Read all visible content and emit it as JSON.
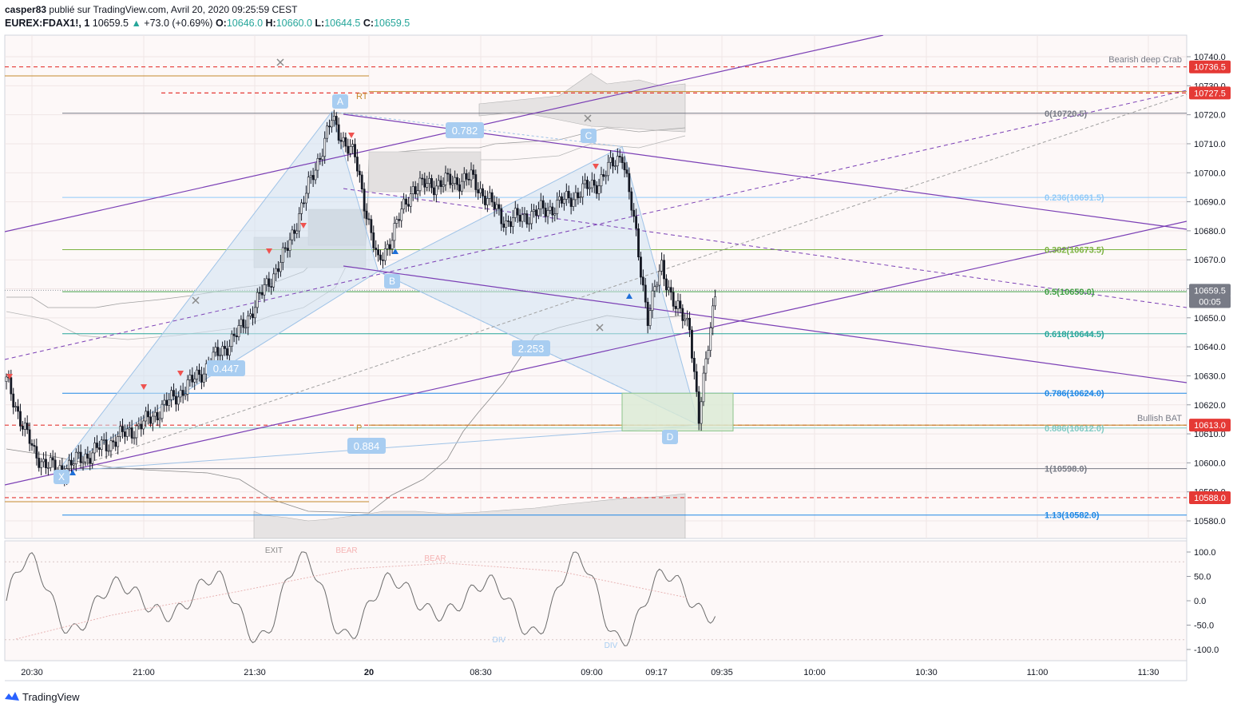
{
  "header": {
    "line1_user": "casper83",
    "line1_rest": "publié sur TradingView.com, Avril 20, 2020 09:25:59 CEST",
    "symbol": "EUREX:FDAX1!, 1",
    "last": "10659.5",
    "change_arrow": "▲",
    "change": "+73.0 (+0.69%)",
    "open_label": "O:",
    "open": "10646.0",
    "high_label": "H:",
    "high": "10660.0",
    "low_label": "L:",
    "low": "10644.5",
    "close_label": "C:",
    "close": "10659.5"
  },
  "footer": {
    "brand": "TradingView"
  },
  "colors": {
    "up": "#26a69a",
    "down": "#ef5350",
    "fib_blue": "#5b9bd5",
    "pattern_fill": "#cfe2f3",
    "purple": "#7b3fb5",
    "red_dash": "#e53935",
    "green_box": "#d9ead3",
    "candle": "#131722"
  },
  "chart_data": [
    {
      "type": "candlestick",
      "instrument": "EUREX:FDAX1!, 1",
      "y_ticks": [
        10740.0,
        10730.0,
        10720.0,
        10710.0,
        10700.0,
        10690.0,
        10680.0,
        10670.0,
        10660.0,
        10650.0,
        10640.0,
        10630.0,
        10620.0,
        10610.0,
        10600.0,
        10590.0,
        10580.0
      ],
      "ylim": [
        10572,
        10754
      ],
      "x_ticks": [
        "20:30",
        "21:00",
        "21:30",
        "20",
        "08:30",
        "09:00",
        "09:17",
        "09:35",
        "10:00",
        "10:30",
        "11:00",
        "11:30"
      ],
      "price_labels": [
        {
          "text": "10736.5",
          "value": 10736.5,
          "color": "#e53935"
        },
        {
          "text": "10727.5",
          "value": 10727.5,
          "color": "#e53935"
        },
        {
          "text": "10659.5",
          "value": 10659.5,
          "color": "#787b86"
        },
        {
          "text": "00:05",
          "value": 10655.6,
          "color": "#787b86"
        },
        {
          "text": "10613.0",
          "value": 10613.0,
          "color": "#e53935"
        },
        {
          "text": "10588.0",
          "value": 10588.0,
          "color": "#e53935"
        }
      ],
      "fibonacci": [
        {
          "label": "0(10720.5)",
          "value": 10720.5,
          "color": "#787b86"
        },
        {
          "label": "0.236(10691.5)",
          "value": 10691.5,
          "color": "#90caf9"
        },
        {
          "label": "0.382(10673.5)",
          "value": 10673.5,
          "color": "#7cb342"
        },
        {
          "label": "0.5(10659.0)",
          "value": 10659.0,
          "color": "#43a047"
        },
        {
          "label": "0.618(10644.5)",
          "value": 10644.5,
          "color": "#26a69a"
        },
        {
          "label": "0.786(10624.0)",
          "value": 10624.0,
          "color": "#1e88e5"
        },
        {
          "label": "0.886(10612.0)",
          "value": 10612.0,
          "color": "#80cbc4"
        },
        {
          "label": "1(10598.0)",
          "value": 10598.0,
          "color": "#787b86"
        },
        {
          "label": "1.13(10582.0)",
          "value": 10582.0,
          "color": "#1e88e5"
        }
      ],
      "harmonic_points": [
        {
          "label": "X",
          "t": 22,
          "value": 10597
        },
        {
          "label": "A",
          "t": 140,
          "value": 10721
        },
        {
          "label": "B",
          "t": 160,
          "value": 10666
        },
        {
          "label": "C",
          "t": 265,
          "value": 10709
        },
        {
          "label": "D",
          "t": 298,
          "value": 10613
        }
      ],
      "ratios": [
        "0.782",
        "0.447",
        "2.253",
        "0.884"
      ],
      "annotations": [
        "Bearish deep Crab",
        "Bullish BAT",
        "RT",
        "P"
      ]
    },
    {
      "type": "line",
      "name": "oscillator",
      "y_ticks": [
        100.0,
        50.0,
        0.0,
        -50.0,
        -100.0
      ],
      "ylim": [
        -125,
        125
      ],
      "labels": [
        "EXIT",
        "BEAR",
        "BEAR",
        "DIV",
        "DIV"
      ]
    }
  ]
}
